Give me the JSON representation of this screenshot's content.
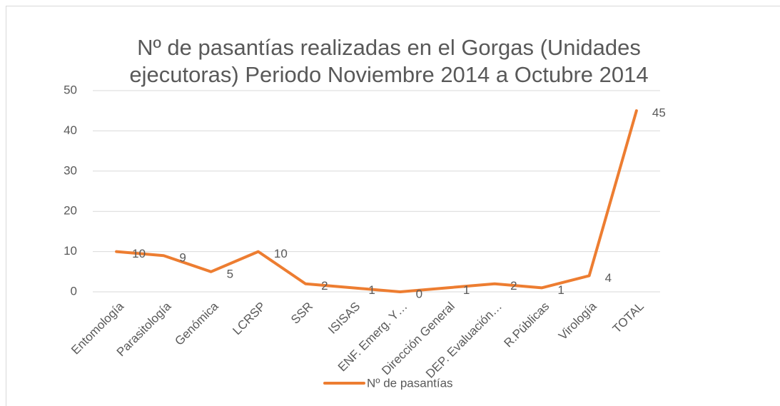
{
  "chart_data": {
    "type": "line",
    "title": "Nº de pasantías realizadas en el Gorgas (Unidades ejecutoras) Periodo Noviembre 2014 a Octubre 2014",
    "categories": [
      "Entomología",
      "Parasitología",
      "Genómica",
      "LCRSP",
      "SSR",
      "ISISAS",
      "ENF. Emerg. Y…",
      "Dirección General",
      "DEP. Evaluación…",
      "R.Públicas",
      "Virología",
      "TOTAL"
    ],
    "series": [
      {
        "name": "Nº de pasantías",
        "color": "#ED7D31",
        "values": [
          10,
          9,
          5,
          10,
          2,
          1,
          0,
          1,
          2,
          1,
          4,
          45
        ]
      }
    ],
    "ylim": [
      0,
      50
    ],
    "yticks": [
      0,
      10,
      20,
      30,
      40,
      50
    ],
    "grid": true,
    "legend": "bottom"
  }
}
